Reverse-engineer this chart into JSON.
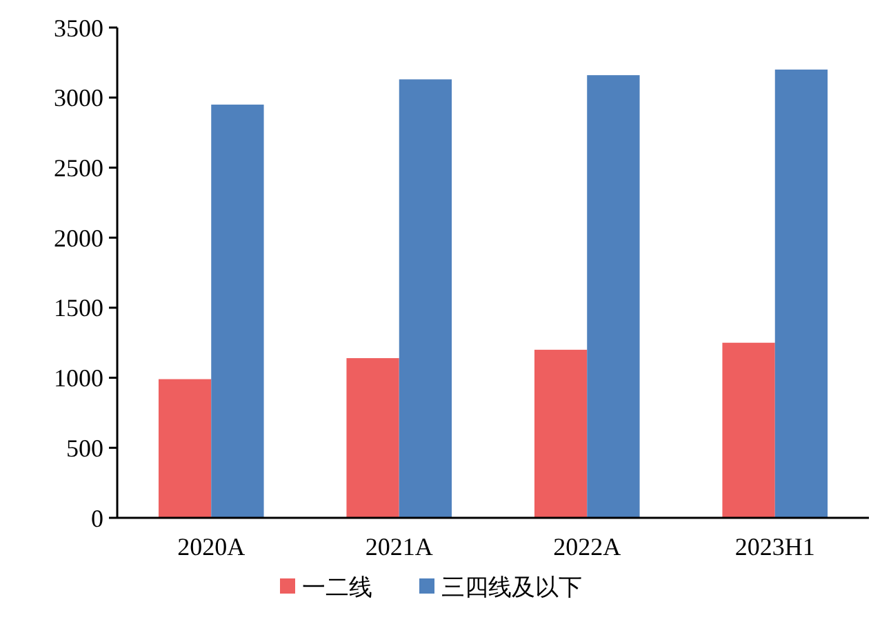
{
  "chart_data": {
    "type": "bar",
    "categories": [
      "2020A",
      "2021A",
      "2022A",
      "2023H1"
    ],
    "series": [
      {
        "name": "一二线",
        "color": "#ee5f5f",
        "values": [
          990,
          1140,
          1200,
          1250
        ]
      },
      {
        "name": "三四线及以下",
        "color": "#4f81bd",
        "values": [
          2950,
          3130,
          3160,
          3200
        ]
      }
    ],
    "ylim": [
      0,
      3500
    ],
    "yticks": [
      0,
      500,
      1000,
      1500,
      2000,
      2500,
      3000,
      3500
    ],
    "grid": false,
    "legend": "bottom"
  }
}
